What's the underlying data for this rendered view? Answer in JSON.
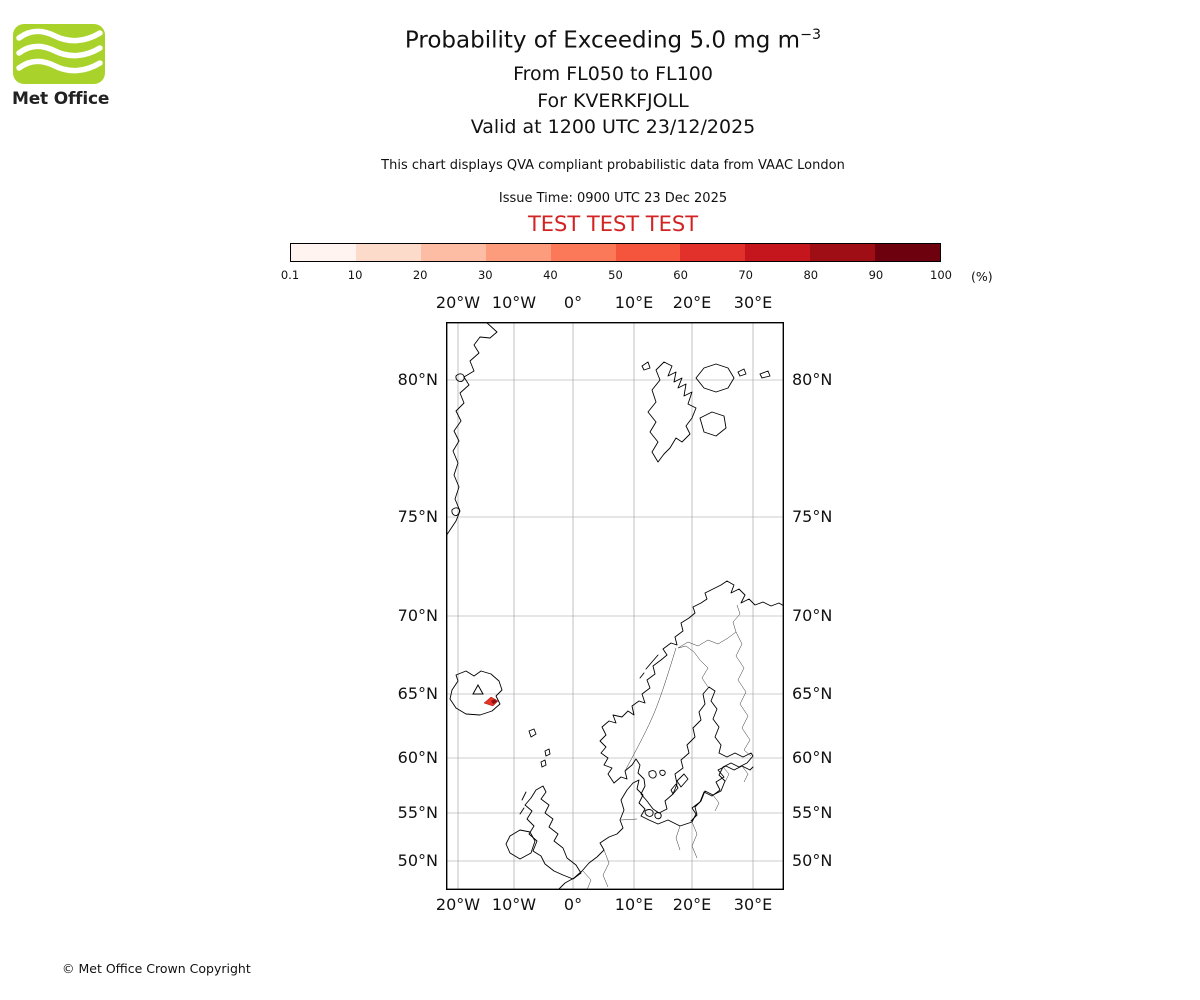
{
  "logo": {
    "text": "Met Office"
  },
  "header": {
    "title_prefix": "Probability of Exceeding 5.0 mg m",
    "title_exponent": "−3",
    "subtitle_flight_levels": "From FL050 to FL100",
    "subtitle_volcano": "For KVERKFJOLL",
    "subtitle_valid": "Valid at 1200 UTC 23/12/2025",
    "description": "This chart displays QVA compliant probabilistic data from VAAC London",
    "issue_time": "Issue Time: 0900 UTC 23 Dec 2025",
    "test_banner": "TEST TEST TEST"
  },
  "colorbar": {
    "unit_label": "(%)",
    "tick_labels": [
      "0.1",
      "10",
      "20",
      "30",
      "40",
      "50",
      "60",
      "70",
      "80",
      "90",
      "100"
    ],
    "segment_colors": [
      "#fff4ef",
      "#fddbcb",
      "#fcbda4",
      "#fc9c7c",
      "#fb7858",
      "#f5543d",
      "#e2302a",
      "#c5161d",
      "#9f0e14",
      "#6d010e"
    ]
  },
  "map": {
    "lon_labels": [
      "20°W",
      "10°W",
      "0°",
      "10°E",
      "20°E",
      "30°E"
    ],
    "lat_labels": [
      "80°N",
      "75°N",
      "70°N",
      "65°N",
      "60°N",
      "55°N",
      "50°N"
    ]
  },
  "colors": {
    "test_banner_red": "#d32222",
    "logo_green": "#a9d32a",
    "ash_red": "#e63323",
    "ash_dark": "#8c1310"
  },
  "footer": {
    "copyright": "© Met Office Crown Copyright"
  }
}
